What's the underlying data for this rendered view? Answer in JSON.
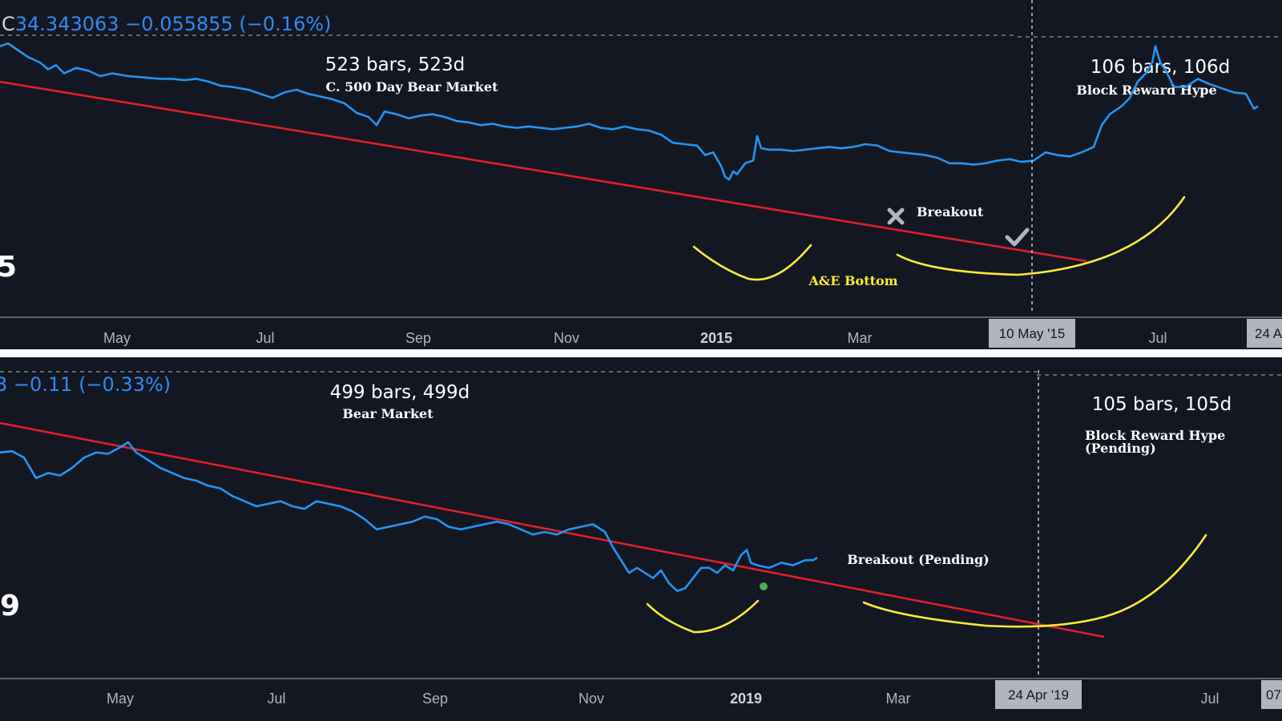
{
  "colors": {
    "background": "#131722",
    "price_line": "#2196f3",
    "trendline": "#e0202a",
    "pattern_curve": "#ffeb3b",
    "marker_green": "#4caf50",
    "label_box": "#b2b5be"
  },
  "top_panel": {
    "header_prefix": "C",
    "header_value": "34.343063 −0.055855 (−0.16%)",
    "big_year_fragment": "5",
    "range_label_left": "523 bars, 523d",
    "range_sub_left": "C. 500 Day Bear Market",
    "range_label_right": "106 bars, 106d",
    "range_sub_right": "Block Reward Hype",
    "breakout_label": "Breakout",
    "breakout_marker_icon": "x-cross-icon",
    "confirm_marker_icon": "checkmark-icon",
    "pattern_label": "A&E Bottom",
    "crosshair_date": "10 May '15",
    "right_edge_date": "24 A",
    "x_ticks": [
      "May",
      "Jul",
      "Sep",
      "Nov",
      "2015",
      "Mar",
      "Jul"
    ]
  },
  "bottom_panel": {
    "header_value": "3 −0.11 (−0.33%)",
    "big_year_fragment": "9",
    "range_label_left": "499 bars, 499d",
    "range_sub_left": "Bear Market",
    "range_label_right": "105 bars, 105d",
    "range_sub_right_line1": "Block Reward Hype",
    "range_sub_right_line2": "(Pending)",
    "breakout_label": "Breakout (Pending)",
    "crosshair_date": "24 Apr '19",
    "right_edge_date": "07",
    "x_ticks": [
      "May",
      "Jul",
      "Sep",
      "Nov",
      "2019",
      "Mar",
      "Jul"
    ]
  },
  "chart_data": [
    {
      "type": "line",
      "title": "",
      "x_ticks": [
        "May",
        "Jul",
        "Sep",
        "Nov",
        "2015",
        "Mar",
        "Jul"
      ],
      "series": [
        {
          "color": "#2196f3",
          "points": [
            [
              0,
              72
            ],
            [
              10,
              74
            ],
            [
              20,
              70
            ],
            [
              35,
              64
            ],
            [
              50,
              60
            ],
            [
              60,
              55
            ],
            [
              70,
              58
            ],
            [
              80,
              52
            ],
            [
              95,
              56
            ],
            [
              110,
              54
            ],
            [
              125,
              50
            ],
            [
              140,
              52
            ],
            [
              160,
              50
            ],
            [
              180,
              49
            ],
            [
              200,
              48
            ],
            [
              215,
              48
            ],
            [
              230,
              47
            ],
            [
              245,
              48
            ],
            [
              260,
              46
            ],
            [
              275,
              43
            ],
            [
              290,
              42
            ],
            [
              310,
              40
            ],
            [
              325,
              37
            ],
            [
              340,
              34
            ],
            [
              355,
              38
            ],
            [
              370,
              40
            ],
            [
              385,
              37
            ],
            [
              400,
              35
            ],
            [
              415,
              33
            ],
            [
              430,
              30
            ],
            [
              445,
              23
            ],
            [
              460,
              20
            ],
            [
              470,
              14
            ],
            [
              480,
              24
            ],
            [
              495,
              22
            ],
            [
              510,
              19
            ],
            [
              525,
              21
            ],
            [
              540,
              22
            ],
            [
              555,
              20
            ],
            [
              570,
              17
            ],
            [
              585,
              16
            ],
            [
              600,
              14
            ],
            [
              615,
              15
            ],
            [
              630,
              13
            ],
            [
              645,
              12
            ],
            [
              660,
              13
            ],
            [
              675,
              12
            ],
            [
              690,
              11
            ],
            [
              705,
              12
            ],
            [
              720,
              13
            ],
            [
              735,
              15
            ],
            [
              750,
              12
            ],
            [
              765,
              11
            ],
            [
              780,
              13
            ],
            [
              795,
              11
            ],
            [
              810,
              10
            ],
            [
              825,
              7
            ],
            [
              840,
              1
            ],
            [
              855,
              0
            ],
            [
              870,
              -1
            ],
            [
              880,
              -8
            ],
            [
              890,
              -6
            ],
            [
              900,
              -16
            ],
            [
              905,
              -24
            ],
            [
              910,
              -26
            ],
            [
              915,
              -20
            ],
            [
              920,
              -22
            ],
            [
              930,
              -14
            ],
            [
              940,
              -12
            ],
            [
              945,
              6
            ],
            [
              950,
              -3
            ],
            [
              960,
              -4
            ],
            [
              975,
              -4
            ],
            [
              990,
              -5
            ],
            [
              1005,
              -4
            ],
            [
              1020,
              -3
            ],
            [
              1035,
              -2
            ],
            [
              1050,
              -3
            ],
            [
              1065,
              -2
            ],
            [
              1080,
              0
            ],
            [
              1095,
              -1
            ],
            [
              1110,
              -5
            ],
            [
              1125,
              -6
            ],
            [
              1140,
              -7
            ],
            [
              1155,
              -8
            ],
            [
              1170,
              -10
            ],
            [
              1185,
              -14
            ],
            [
              1200,
              -14
            ],
            [
              1215,
              -15
            ],
            [
              1230,
              -14
            ],
            [
              1245,
              -12
            ],
            [
              1260,
              -11
            ],
            [
              1275,
              -13
            ],
            [
              1290,
              -12
            ],
            [
              1305,
              -6
            ],
            [
              1320,
              -8
            ],
            [
              1335,
              -9
            ],
            [
              1350,
              -6
            ],
            [
              1365,
              -2
            ],
            [
              1375,
              14
            ],
            [
              1385,
              22
            ],
            [
              1400,
              28
            ],
            [
              1410,
              34
            ],
            [
              1420,
              46
            ],
            [
              1430,
              52
            ],
            [
              1438,
              60
            ],
            [
              1442,
              72
            ],
            [
              1448,
              60
            ],
            [
              1455,
              54
            ],
            [
              1465,
              42
            ],
            [
              1480,
              42
            ],
            [
              1495,
              48
            ],
            [
              1510,
              44
            ],
            [
              1525,
              41
            ],
            [
              1540,
              38
            ],
            [
              1555,
              37
            ],
            [
              1565,
              26
            ],
            [
              1570,
              28
            ]
          ]
        }
      ],
      "annotations": [
        "523 bars, 523d",
        "C. 500 Day Bear Market",
        "106 bars, 106d",
        "Block Reward Hype",
        "Breakout",
        "A&E Bottom",
        "10 May '15"
      ]
    },
    {
      "type": "line",
      "title": "",
      "x_ticks": [
        "May",
        "Jul",
        "Sep",
        "Nov",
        "2019",
        "Mar",
        "Jul"
      ],
      "series": [
        {
          "color": "#2196f3",
          "points": [
            [
              0,
              72
            ],
            [
              15,
              73
            ],
            [
              30,
              68
            ],
            [
              45,
              52
            ],
            [
              60,
              56
            ],
            [
              75,
              54
            ],
            [
              90,
              60
            ],
            [
              105,
              68
            ],
            [
              120,
              72
            ],
            [
              135,
              71
            ],
            [
              150,
              76
            ],
            [
              160,
              80
            ],
            [
              170,
              72
            ],
            [
              185,
              66
            ],
            [
              200,
              60
            ],
            [
              215,
              56
            ],
            [
              230,
              52
            ],
            [
              245,
              50
            ],
            [
              260,
              46
            ],
            [
              275,
              44
            ],
            [
              290,
              38
            ],
            [
              305,
              34
            ],
            [
              320,
              30
            ],
            [
              335,
              32
            ],
            [
              350,
              34
            ],
            [
              365,
              30
            ],
            [
              380,
              28
            ],
            [
              395,
              34
            ],
            [
              410,
              32
            ],
            [
              425,
              30
            ],
            [
              440,
              26
            ],
            [
              455,
              20
            ],
            [
              470,
              12
            ],
            [
              485,
              14
            ],
            [
              500,
              16
            ],
            [
              515,
              18
            ],
            [
              530,
              22
            ],
            [
              545,
              20
            ],
            [
              560,
              14
            ],
            [
              575,
              12
            ],
            [
              590,
              14
            ],
            [
              605,
              16
            ],
            [
              620,
              18
            ],
            [
              635,
              16
            ],
            [
              650,
              12
            ],
            [
              665,
              8
            ],
            [
              680,
              10
            ],
            [
              695,
              8
            ],
            [
              710,
              12
            ],
            [
              725,
              14
            ],
            [
              740,
              16
            ],
            [
              755,
              10
            ],
            [
              765,
              -2
            ],
            [
              775,
              -12
            ],
            [
              785,
              -22
            ],
            [
              795,
              -18
            ],
            [
              805,
              -22
            ],
            [
              815,
              -26
            ],
            [
              825,
              -20
            ],
            [
              835,
              -30
            ],
            [
              845,
              -36
            ],
            [
              855,
              -34
            ],
            [
              865,
              -26
            ],
            [
              875,
              -18
            ],
            [
              885,
              -18
            ],
            [
              895,
              -22
            ],
            [
              905,
              -16
            ],
            [
              915,
              -20
            ],
            [
              925,
              -8
            ],
            [
              932,
              -4
            ],
            [
              937,
              -14
            ],
            [
              945,
              -16
            ],
            [
              960,
              -18
            ],
            [
              975,
              -14
            ],
            [
              990,
              -16
            ],
            [
              1005,
              -12
            ],
            [
              1015,
              -12
            ],
            [
              1020,
              -10
            ]
          ]
        }
      ],
      "annotations": [
        "499 bars, 499d",
        "Bear Market",
        "105 bars, 105d",
        "Block Reward Hype (Pending)",
        "Breakout (Pending)",
        "24 Apr '19"
      ]
    }
  ]
}
